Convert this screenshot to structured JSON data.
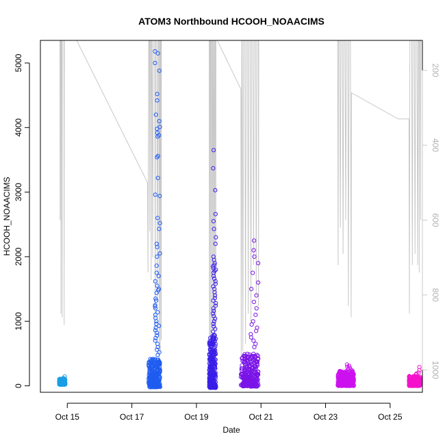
{
  "chart_data": {
    "type": "scatter",
    "title": "ATOM3 Northbound HCOOH_NOAACIMS",
    "xlabel": "Date",
    "ylabel": "HCOOH_NOAACIMS",
    "xlim": [
      "2017-10-14T04:00",
      "2017-10-26T00:00"
    ],
    "ylim": [
      -100,
      5350
    ],
    "yticks": [
      0,
      1000,
      2000,
      3000,
      4000,
      5000
    ],
    "xticks": [
      {
        "label": "Oct 15",
        "date": "2017-10-15"
      },
      {
        "label": "Oct 17",
        "date": "2017-10-17"
      },
      {
        "label": "Oct 19",
        "date": "2017-10-19"
      },
      {
        "label": "Oct 21",
        "date": "2017-10-21"
      },
      {
        "label": "Oct 23",
        "date": "2017-10-23"
      },
      {
        "label": "Oct 25",
        "date": "2017-10-25"
      }
    ],
    "right_axis": {
      "label": "",
      "reversed": true,
      "ylim": [
        120,
        1060
      ],
      "ticks": [
        200,
        400,
        600,
        800,
        1000
      ],
      "color": "#c8c8c8"
    },
    "flights": [
      {
        "start": "2017-10-14T18:00",
        "end": "2017-10-14T22:30",
        "color": "#1a9ee6",
        "core_min": 20,
        "core_max": 110,
        "outliers": [
          145,
          120,
          105
        ]
      },
      {
        "start": "2017-10-17T12:30",
        "end": "2017-10-17T21:00",
        "color": "#1f5cf0",
        "core_min": -20,
        "core_max": 420,
        "outliers": [
          5180,
          5150,
          5000,
          4880,
          4520,
          4420,
          4200,
          4100,
          4010,
          3980,
          3920,
          3880,
          3860,
          3560,
          3540,
          3220,
          2960,
          2940,
          2600,
          2520,
          2430,
          2200,
          2150,
          2050,
          2000,
          1860,
          1750,
          1700,
          1620,
          1550,
          1500,
          1480,
          1440,
          1350,
          1320,
          1250,
          1230,
          1200,
          1140,
          1100,
          1050,
          1000,
          960,
          930,
          900,
          860,
          820,
          780,
          740,
          700,
          650,
          600,
          560,
          520,
          480
        ]
      },
      {
        "start": "2017-10-19T09:30",
        "end": "2017-10-19T14:30",
        "color": "#3a1fe8",
        "core_min": -30,
        "core_max": 800,
        "outliers": [
          3650,
          3370,
          3030,
          2660,
          2550,
          2430,
          2300,
          2200,
          2000,
          1950,
          1900,
          1870,
          1850,
          1820,
          1800,
          1780,
          1750,
          1700,
          1660,
          1620,
          1580,
          1540,
          1500,
          1450,
          1400,
          1360,
          1320,
          1280,
          1240,
          1200,
          1160,
          1120,
          1080,
          1040,
          1000,
          960,
          920,
          880,
          840
        ]
      },
      {
        "start": "2017-10-20T09:00",
        "end": "2017-10-20T22:00",
        "color": "#7a14e8",
        "core_min": -10,
        "core_max": 500,
        "outliers": [
          2250,
          2100,
          2000,
          1900,
          1750,
          1600,
          1500,
          1400,
          1300,
          1200,
          1100,
          1000,
          950,
          900,
          850,
          800,
          750,
          700,
          650,
          600
        ]
      },
      {
        "start": "2017-10-23T09:00",
        "end": "2017-10-23T21:00",
        "color": "#cc11ee",
        "core_min": 0,
        "core_max": 230,
        "outliers": [
          330,
          310,
          295,
          280,
          260,
          250
        ]
      },
      {
        "start": "2017-10-25T14:00",
        "end": "2017-10-25T22:30",
        "color": "#f511cc",
        "core_min": 0,
        "core_max": 150,
        "outliers": [
          290,
          240,
          205,
          190,
          175
        ]
      }
    ],
    "pressure_trace": {
      "color": "#c8c8c8",
      "points": [
        [
          "2017-10-14T18:30",
          120
        ],
        [
          "2017-10-14T18:40",
          600
        ],
        [
          "2017-10-14T18:50",
          120
        ],
        [
          "2017-10-14T19:10",
          120
        ],
        [
          "2017-10-14T19:20",
          850
        ],
        [
          "2017-10-14T19:30",
          120
        ],
        [
          "2017-10-14T20:00",
          120
        ],
        [
          "2017-10-14T20:10",
          860
        ],
        [
          "2017-10-14T20:20",
          120
        ],
        [
          "2017-10-14T21:30",
          120
        ],
        [
          "2017-10-14T21:40",
          880
        ],
        [
          "2017-10-14T21:50",
          120
        ],
        [
          "2017-10-15T07:00",
          120
        ],
        [
          "2017-10-17T11:40",
          500
        ],
        [
          "2017-10-17T12:00",
          740
        ],
        [
          "2017-10-17T12:30",
          120
        ],
        [
          "2017-10-17T13:00",
          120
        ],
        [
          "2017-10-17T13:15",
          630
        ],
        [
          "2017-10-17T13:30",
          120
        ],
        [
          "2017-10-17T14:00",
          120
        ],
        [
          "2017-10-17T14:20",
          760
        ],
        [
          "2017-10-17T14:40",
          120
        ],
        [
          "2017-10-17T15:00",
          120
        ],
        [
          "2017-10-17T15:30",
          700
        ],
        [
          "2017-10-17T16:00",
          120
        ],
        [
          "2017-10-17T17:00",
          120
        ],
        [
          "2017-10-17T17:20",
          900
        ],
        [
          "2017-10-17T17:40",
          120
        ],
        [
          "2017-10-17T18:30",
          120
        ],
        [
          "2017-10-17T19:00",
          820
        ],
        [
          "2017-10-17T19:30",
          120
        ],
        [
          "2017-10-17T20:00",
          120
        ],
        [
          "2017-10-17T20:20",
          980
        ],
        [
          "2017-10-17T20:40",
          120
        ],
        [
          "2017-10-17T21:00",
          120
        ],
        [
          "2017-10-17T21:10",
          950
        ],
        [
          "2017-10-17T21:20",
          120
        ],
        [
          "2017-10-17T21:40",
          120
        ],
        [
          "2017-10-17T21:50",
          920
        ],
        [
          "2017-10-17T22:00",
          120
        ],
        [
          "2017-10-18T18:00",
          120
        ],
        [
          "2017-10-19T09:30",
          120
        ],
        [
          "2017-10-19T09:40",
          950
        ],
        [
          "2017-10-19T09:50",
          120
        ],
        [
          "2017-10-19T10:10",
          120
        ],
        [
          "2017-10-19T10:20",
          1040
        ],
        [
          "2017-10-19T10:30",
          120
        ],
        [
          "2017-10-19T11:00",
          120
        ],
        [
          "2017-10-19T11:20",
          960
        ],
        [
          "2017-10-19T11:40",
          120
        ],
        [
          "2017-10-19T12:00",
          120
        ],
        [
          "2017-10-19T12:20",
          980
        ],
        [
          "2017-10-19T12:40",
          120
        ],
        [
          "2017-10-19T13:00",
          120
        ],
        [
          "2017-10-19T13:20",
          1000
        ],
        [
          "2017-10-19T13:40",
          120
        ],
        [
          "2017-10-19T14:00",
          120
        ],
        [
          "2017-10-19T14:20",
          1020
        ],
        [
          "2017-10-19T14:30",
          120
        ],
        [
          "2017-10-19T15:30",
          120
        ],
        [
          "2017-10-20T09:00",
          250
        ],
        [
          "2017-10-20T09:20",
          980
        ],
        [
          "2017-10-20T09:40",
          120
        ],
        [
          "2017-10-20T10:00",
          120
        ],
        [
          "2017-10-20T10:30",
          950
        ],
        [
          "2017-10-20T11:00",
          120
        ],
        [
          "2017-10-20T12:00",
          120
        ],
        [
          "2017-10-20T12:30",
          930
        ],
        [
          "2017-10-20T13:00",
          120
        ],
        [
          "2017-10-20T14:00",
          120
        ],
        [
          "2017-10-20T14:30",
          850
        ],
        [
          "2017-10-20T15:00",
          120
        ],
        [
          "2017-10-20T16:00",
          120
        ],
        [
          "2017-10-20T16:30",
          870
        ],
        [
          "2017-10-20T17:00",
          120
        ],
        [
          "2017-10-20T18:00",
          120
        ],
        [
          "2017-10-20T18:30",
          720
        ],
        [
          "2017-10-20T19:00",
          120
        ],
        [
          "2017-10-20T20:00",
          120
        ],
        [
          "2017-10-20T20:30",
          800
        ],
        [
          "2017-10-20T21:00",
          120
        ],
        [
          "2017-10-20T22:00",
          120
        ],
        [
          "2017-10-20T22:10",
          830
        ],
        [
          "2017-10-20T22:20",
          120
        ],
        [
          "2017-10-21T12:00",
          120
        ],
        [
          "2017-10-23T09:00",
          120
        ],
        [
          "2017-10-23T09:20",
          720
        ],
        [
          "2017-10-23T09:40",
          120
        ],
        [
          "2017-10-23T10:30",
          120
        ],
        [
          "2017-10-23T11:00",
          620
        ],
        [
          "2017-10-23T11:30",
          120
        ],
        [
          "2017-10-23T12:30",
          120
        ],
        [
          "2017-10-23T13:00",
          690
        ],
        [
          "2017-10-23T13:30",
          120
        ],
        [
          "2017-10-23T14:30",
          120
        ],
        [
          "2017-10-23T15:00",
          600
        ],
        [
          "2017-10-23T15:30",
          120
        ],
        [
          "2017-10-23T16:30",
          120
        ],
        [
          "2017-10-23T17:00",
          830
        ],
        [
          "2017-10-23T17:30",
          120
        ],
        [
          "2017-10-23T18:30",
          120
        ],
        [
          "2017-10-23T19:00",
          860
        ],
        [
          "2017-10-23T19:15",
          260
        ],
        [
          "2017-10-25T06:00",
          330
        ],
        [
          "2017-10-25T14:00",
          330
        ],
        [
          "2017-10-25T14:20",
          850
        ],
        [
          "2017-10-25T14:40",
          120
        ],
        [
          "2017-10-25T16:00",
          120
        ],
        [
          "2017-10-25T16:30",
          720
        ],
        [
          "2017-10-25T17:00",
          120
        ],
        [
          "2017-10-25T18:00",
          120
        ],
        [
          "2017-10-25T18:30",
          690
        ],
        [
          "2017-10-25T19:00",
          120
        ],
        [
          "2017-10-25T20:00",
          120
        ],
        [
          "2017-10-25T20:30",
          720
        ],
        [
          "2017-10-25T21:00",
          120
        ],
        [
          "2017-10-25T21:30",
          120
        ],
        [
          "2017-10-25T21:40",
          740
        ],
        [
          "2017-10-25T21:50",
          120
        ],
        [
          "2017-10-25T22:30",
          120
        ],
        [
          "2017-10-25T22:40",
          600
        ],
        [
          "2017-10-25T22:50",
          120
        ]
      ]
    }
  }
}
